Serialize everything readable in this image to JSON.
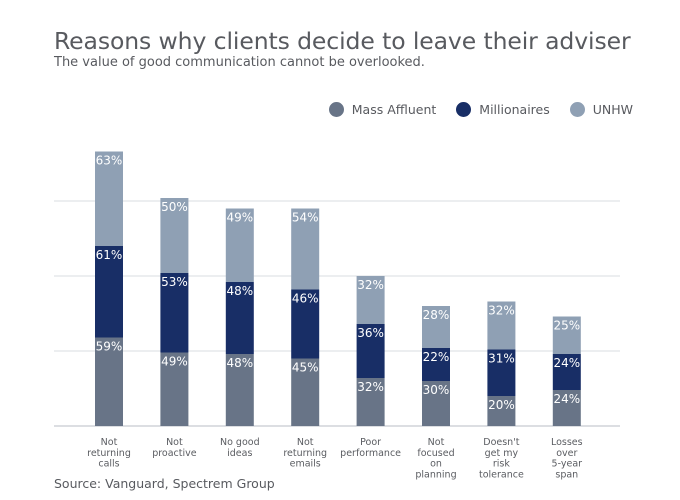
{
  "title": "Reasons why clients decide to leave their adviser",
  "subtitle": "The value of good communication cannot be overlooked.",
  "source": "Source: Vanguard, Spectrem Group",
  "chart_data": {
    "type": "bar",
    "stacked": true,
    "title": "Reasons why clients decide to leave their adviser",
    "subtitle": "The value of good communication cannot be overlooked.",
    "categories": [
      [
        "Not",
        "returning",
        "calls"
      ],
      [
        "Not",
        "proactive"
      ],
      [
        "No good",
        "ideas"
      ],
      [
        "Not",
        "returning",
        "emails"
      ],
      [
        "Poor",
        "performance"
      ],
      [
        "Not",
        "focused",
        "on",
        "planning"
      ],
      [
        "Doesn't",
        "get my",
        "risk",
        "tolerance"
      ],
      [
        "Losses",
        "over",
        "5-year",
        "span"
      ]
    ],
    "series": [
      {
        "name": "Mass Affluent",
        "color": "#687487",
        "values": [
          59,
          49,
          48,
          45,
          32,
          30,
          20,
          24
        ]
      },
      {
        "name": "Millionaires",
        "color": "#182e66",
        "values": [
          61,
          53,
          48,
          46,
          36,
          22,
          31,
          24
        ]
      },
      {
        "name": "UNHW",
        "color": "#8fa0b4",
        "values": [
          63,
          50,
          49,
          54,
          32,
          28,
          32,
          25
        ]
      }
    ],
    "ylim": [
      0,
      180
    ],
    "grid": true,
    "legend": "top-right"
  }
}
